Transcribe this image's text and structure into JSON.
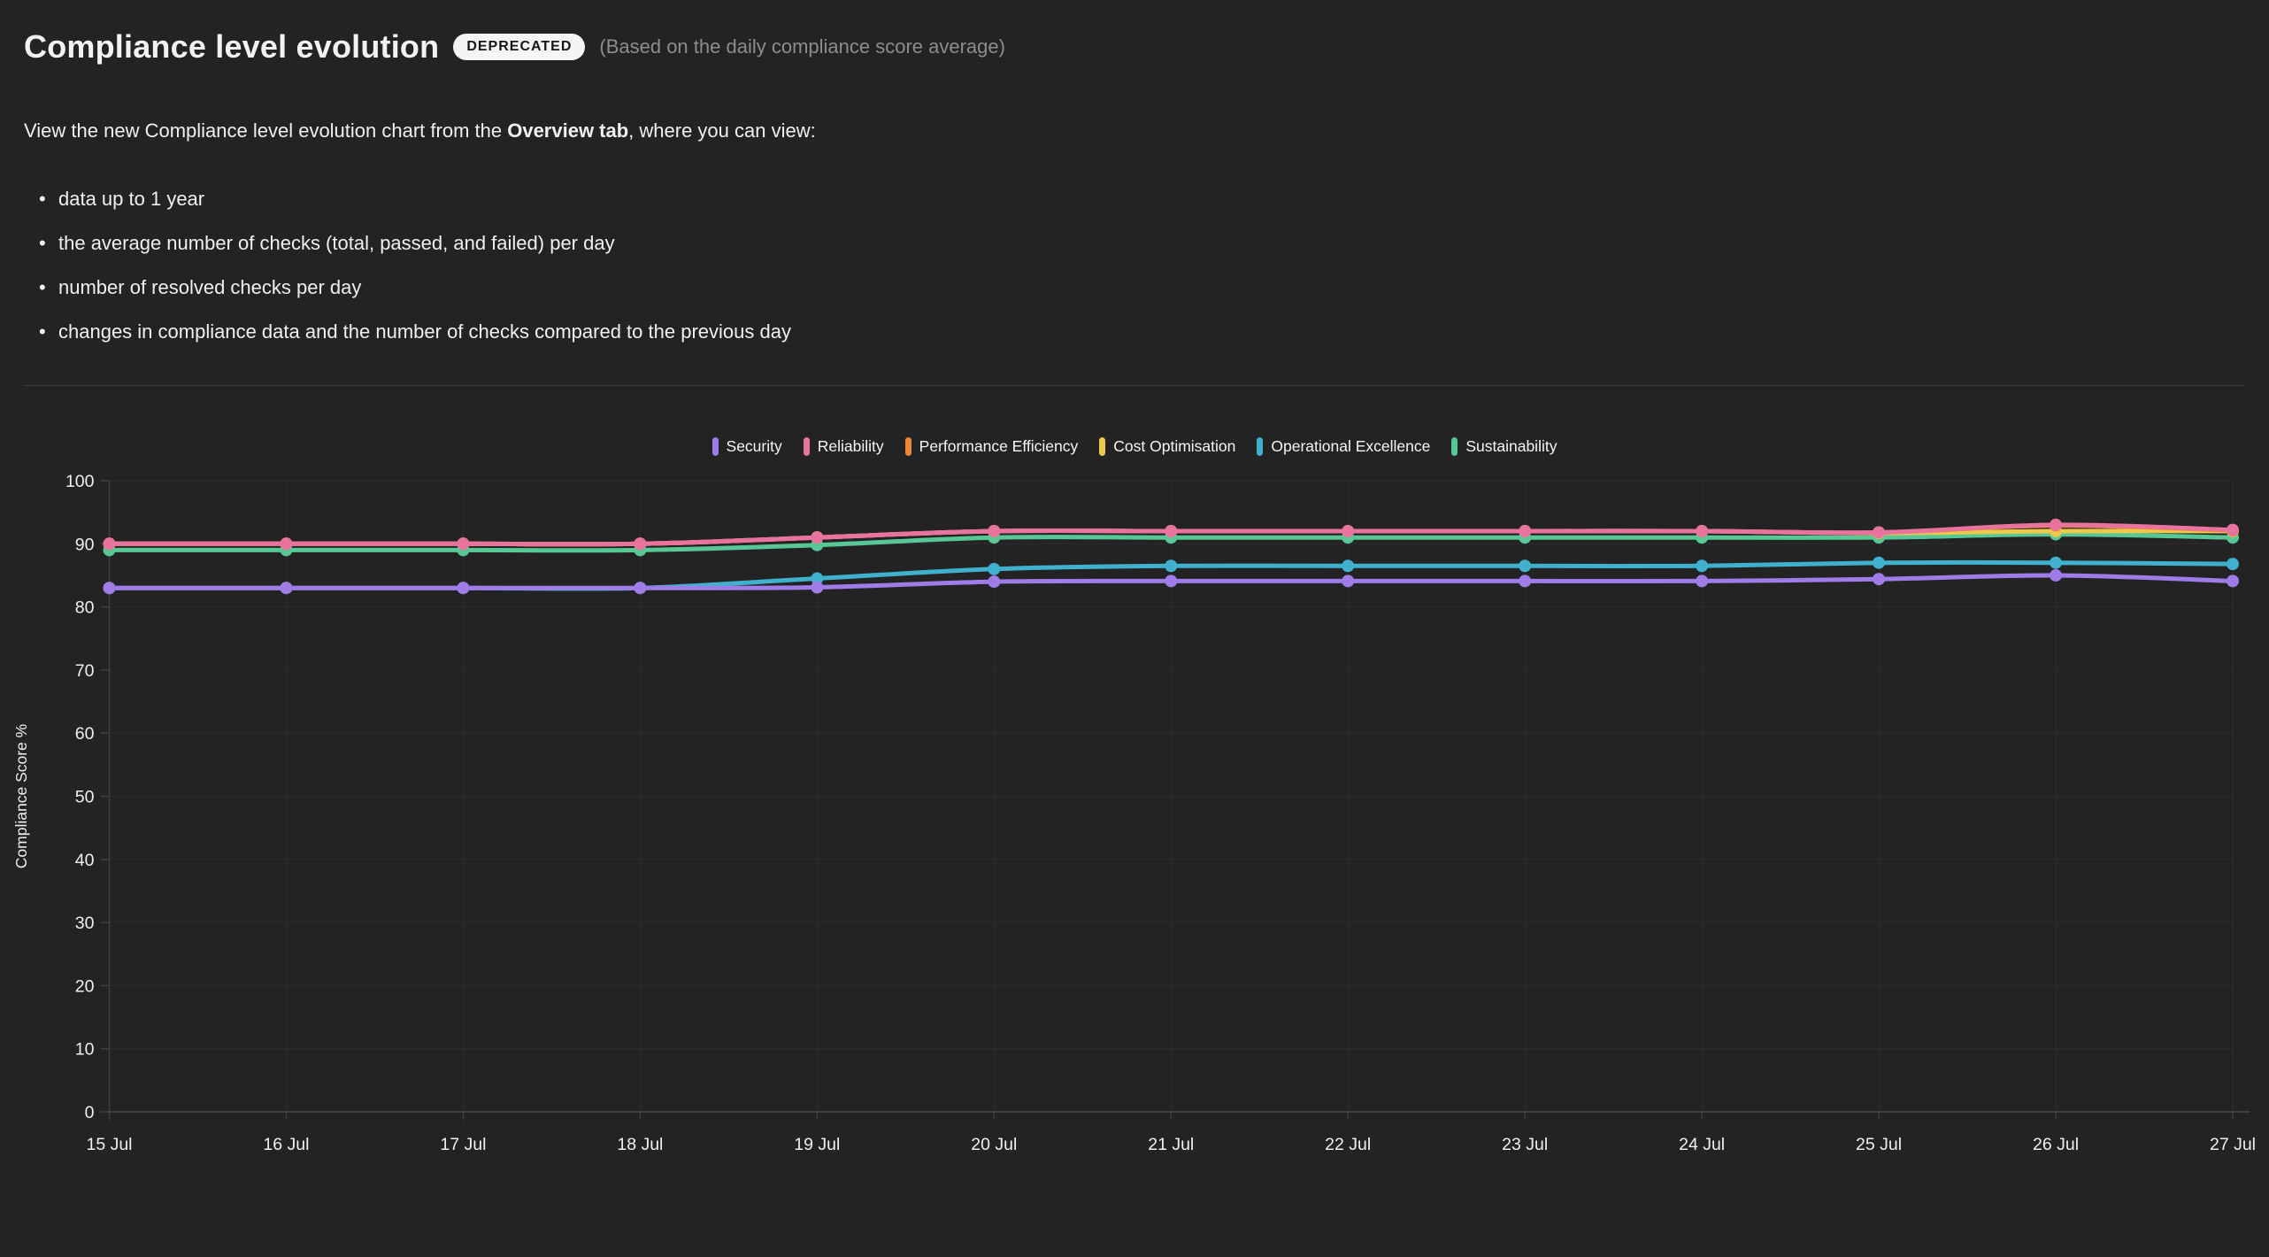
{
  "header": {
    "title": "Compliance level evolution",
    "badge": "DEPRECATED",
    "subtitle": "(Based on the daily compliance score average)"
  },
  "main": {
    "intro_prefix": "View the new Compliance level evolution chart from the ",
    "intro_bold": "Overview tab",
    "intro_suffix": ", where you can view:",
    "bullets": [
      "data up to 1 year",
      "the average number of checks (total, passed, and failed) per day",
      "number of resolved checks per day",
      "changes in compliance data and the number of checks compared to the previous day"
    ]
  },
  "chart_data": {
    "type": "line",
    "categories": [
      "15 Jul",
      "16 Jul",
      "17 Jul",
      "18 Jul",
      "19 Jul",
      "20 Jul",
      "21 Jul",
      "22 Jul",
      "23 Jul",
      "24 Jul",
      "25 Jul",
      "26 Jul",
      "27 Jul"
    ],
    "series": [
      {
        "name": "Security",
        "color": "#a07ce8",
        "values": [
          83,
          83,
          83,
          83,
          83.1,
          84,
          84.1,
          84.1,
          84.1,
          84.1,
          84.4,
          85,
          84.1
        ]
      },
      {
        "name": "Reliability",
        "color": "#e8739e",
        "values": [
          90,
          90,
          90,
          90,
          91,
          92,
          92,
          92,
          92,
          92,
          91.8,
          93,
          92.2
        ]
      },
      {
        "name": "Performance Efficiency",
        "color": "#ed8936",
        "values": [
          90,
          90,
          90,
          90,
          91,
          92,
          92,
          92,
          92,
          92,
          91.8,
          92.9,
          92.1
        ]
      },
      {
        "name": "Cost Optimisation",
        "color": "#ecc94b",
        "values": [
          90,
          90,
          90,
          90,
          91,
          92,
          92,
          92,
          92,
          92,
          91.7,
          92,
          92
        ]
      },
      {
        "name": "Operational Excellence",
        "color": "#3fb0ce",
        "values": [
          83,
          83,
          83,
          83,
          84.5,
          86,
          86.5,
          86.5,
          86.5,
          86.5,
          87,
          87,
          86.8
        ]
      },
      {
        "name": "Sustainability",
        "color": "#57c795",
        "values": [
          89,
          89,
          89,
          89,
          89.8,
          91,
          91,
          91,
          91,
          91,
          91,
          91.5,
          91
        ]
      }
    ],
    "title": "Compliance level evolution",
    "xlabel": "",
    "ylabel": "Compliance Score %",
    "ylim": [
      0,
      100
    ],
    "yticks": [
      0,
      10,
      20,
      30,
      40,
      50,
      60,
      70,
      80,
      90,
      100
    ],
    "grid": true,
    "legend_position": "top"
  },
  "theme": {
    "background": "#232323",
    "badge_background": "#f5f5f5",
    "badge_text": "#161616",
    "grid_color": "#2c2c2c",
    "axis_color": "#3f3f3f"
  }
}
